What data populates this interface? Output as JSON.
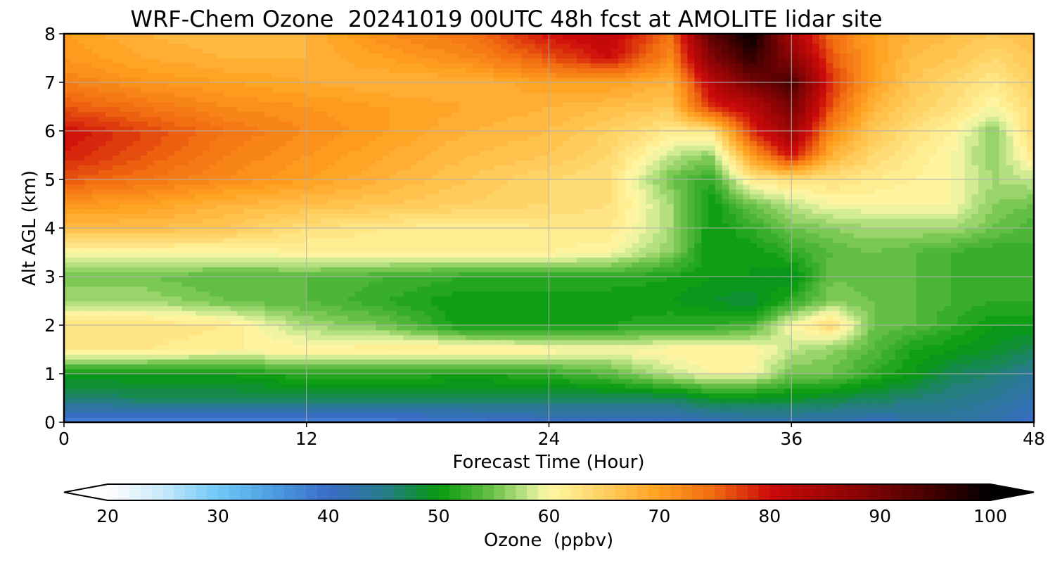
{
  "chart_data": {
    "type": "heatmap",
    "title": "WRF-Chem Ozone  20241019 00UTC 48h fcst at AMOLITE lidar site",
    "xlabel": "Forecast Time (Hour)",
    "ylabel": "Alt AGL (km)",
    "xlim": [
      0,
      48
    ],
    "ylim": [
      0,
      8
    ],
    "xticks": [
      0,
      12,
      24,
      36,
      48
    ],
    "yticks": [
      0,
      1,
      2,
      3,
      4,
      5,
      6,
      7,
      8
    ],
    "grid": true,
    "x": [
      0,
      4,
      8,
      12,
      16,
      20,
      24,
      27,
      30,
      32,
      34,
      36,
      38,
      40,
      42,
      44,
      46,
      48
    ],
    "y": [
      0,
      0.5,
      1,
      1.5,
      2,
      2.5,
      3,
      3.5,
      4,
      4.5,
      5,
      5.5,
      6,
      6.5,
      7,
      7.5,
      8
    ],
    "z": [
      [
        38,
        38,
        38,
        38,
        38,
        39,
        40,
        40,
        40,
        41,
        42,
        42,
        42,
        41,
        42,
        43,
        42,
        40
      ],
      [
        46,
        47,
        47,
        47,
        47,
        47,
        47,
        47,
        47,
        49,
        49,
        49,
        48,
        47,
        46,
        45,
        44,
        42
      ],
      [
        50,
        50,
        50,
        52,
        52,
        51,
        52,
        54,
        58,
        60,
        60,
        55,
        55,
        52,
        50,
        47,
        46,
        44
      ],
      [
        62,
        62,
        61,
        61,
        62,
        62,
        61,
        60,
        61,
        61,
        61,
        58,
        56,
        54,
        51,
        50,
        49,
        47
      ],
      [
        63,
        63,
        62,
        57,
        55,
        50,
        50,
        51,
        52,
        52,
        53,
        60,
        64,
        55,
        54,
        52,
        50,
        50
      ],
      [
        57,
        57,
        55,
        54,
        52,
        50,
        50,
        50,
        50,
        49,
        48,
        52,
        56,
        55,
        54,
        53,
        52,
        52
      ],
      [
        55,
        55,
        54,
        54,
        53,
        52,
        52,
        52,
        51,
        50,
        50,
        49,
        55,
        54,
        54,
        53,
        52,
        53
      ],
      [
        60,
        60,
        60,
        61,
        61,
        61,
        61,
        60,
        56,
        50,
        50,
        52,
        54,
        55,
        54,
        53,
        52,
        53
      ],
      [
        67,
        67,
        66,
        63,
        62,
        61,
        62,
        62,
        57,
        50,
        52,
        55,
        56,
        57,
        57,
        57,
        55,
        53
      ],
      [
        71,
        70,
        68,
        67,
        66,
        65,
        64,
        63,
        57,
        50,
        55,
        58,
        60,
        60,
        60,
        60,
        56,
        55
      ],
      [
        76,
        74,
        72,
        70,
        68,
        66,
        64,
        63,
        55,
        52,
        62,
        63,
        63,
        62,
        61,
        60,
        57,
        58
      ],
      [
        79,
        76,
        73,
        71,
        69,
        67,
        66,
        64,
        58,
        56,
        70,
        80,
        68,
        64,
        62,
        60,
        56,
        62
      ],
      [
        80,
        77,
        74,
        72,
        70,
        68,
        67,
        65,
        62,
        62,
        78,
        86,
        72,
        66,
        63,
        61,
        56,
        64
      ],
      [
        76,
        74,
        72,
        71,
        70,
        69,
        68,
        67,
        66,
        78,
        82,
        90,
        76,
        68,
        65,
        63,
        60,
        64
      ],
      [
        73,
        71,
        70,
        69,
        68,
        68,
        70,
        70,
        68,
        82,
        90,
        94,
        78,
        70,
        66,
        64,
        62,
        65
      ],
      [
        71,
        69,
        68,
        68,
        70,
        72,
        76,
        80,
        72,
        88,
        96,
        88,
        76,
        70,
        67,
        66,
        64,
        66
      ],
      [
        70,
        68,
        67,
        68,
        72,
        74,
        80,
        82,
        74,
        92,
        100,
        84,
        74,
        70,
        68,
        67,
        66,
        67
      ]
    ],
    "colorbar": {
      "label": "Ozone  (ppbv)",
      "min": 20,
      "max": 100,
      "extend": "both",
      "ticks": [
        20,
        30,
        40,
        50,
        60,
        70,
        80,
        90,
        100
      ],
      "colors": [
        [
          20,
          "#ffffff"
        ],
        [
          25,
          "#c8e9fb"
        ],
        [
          30,
          "#6ec8f5"
        ],
        [
          35,
          "#4d9de0"
        ],
        [
          40,
          "#3a6cc8"
        ],
        [
          45,
          "#277a8a"
        ],
        [
          50,
          "#059a0e"
        ],
        [
          55,
          "#6cc24a"
        ],
        [
          58,
          "#c4e68a"
        ],
        [
          60,
          "#fff9a8"
        ],
        [
          65,
          "#ffd060"
        ],
        [
          70,
          "#ffa020"
        ],
        [
          75,
          "#f06a10"
        ],
        [
          80,
          "#cc0a0a"
        ],
        [
          88,
          "#8a0404"
        ],
        [
          95,
          "#400000"
        ],
        [
          100,
          "#000000"
        ]
      ]
    }
  }
}
